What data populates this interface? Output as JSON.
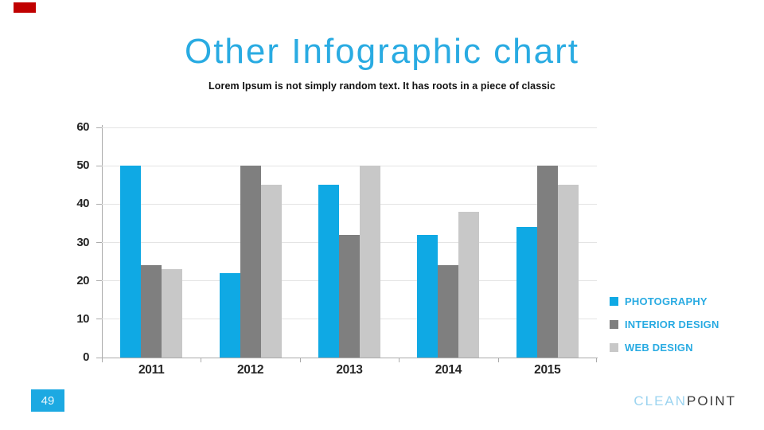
{
  "slide": {
    "title": "Other Infographic chart",
    "subtitle": "Lorem Ipsum is not simply random text. It has roots in a piece of classic",
    "page_number": "49",
    "brand_part1": "CLEAN",
    "brand_part2": "POINT"
  },
  "colors": {
    "accent_marker": "#c00000",
    "title_blue": "#29abe2",
    "page_box_blue": "#1ca9e2",
    "axis_line": "#ababab",
    "gridline": "#e4e4e4",
    "axis_text": "#252525",
    "brand_light_blue": "#9cd4f0",
    "brand_dark": "#3a3a3a"
  },
  "chart_data": {
    "type": "bar",
    "title": "",
    "xlabel": "",
    "ylabel": "",
    "categories": [
      "2011",
      "2012",
      "2013",
      "2014",
      "2015"
    ],
    "series": [
      {
        "name": "PHOTOGRAPHY",
        "color": "#0fa9e4",
        "values": [
          50,
          22,
          45,
          32,
          34
        ]
      },
      {
        "name": "INTERIOR DESIGN",
        "color": "#7f7f7f",
        "values": [
          24,
          50,
          32,
          24,
          50
        ]
      },
      {
        "name": "WEB DESIGN",
        "color": "#c8c8c8",
        "values": [
          23,
          45,
          50,
          38,
          45
        ]
      }
    ],
    "ylim": [
      0,
      60
    ],
    "yticks": [
      0,
      10,
      20,
      30,
      40,
      50,
      60
    ],
    "grid": true,
    "legend_position": "right"
  }
}
